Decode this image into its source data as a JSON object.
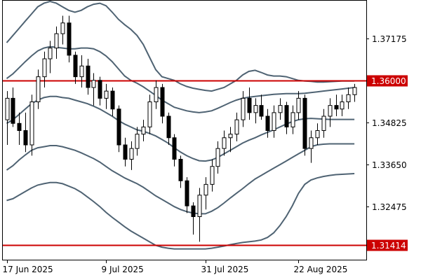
{
  "chart_data": {
    "type": "candlestick",
    "title": "",
    "xlabel": "",
    "ylabel": "",
    "ylim": [
      1.31,
      1.3822
    ],
    "grid": false,
    "colors": {
      "bullish_body": "#ffffff",
      "bearish_body": "#000000",
      "wick": "#000000",
      "bands": "#4f6373",
      "horizontal_line": "#cc0000",
      "badge_bg": "#cc0000",
      "badge_text": "#ffffff",
      "frame": "#000000"
    },
    "y_ticks": [
      "1.37175",
      "1.34825",
      "1.33650",
      "1.32475"
    ],
    "x_ticks": [
      {
        "index": 0,
        "label": "17 Jun 2025"
      },
      {
        "index": 16,
        "label": "9 Jul 2025"
      },
      {
        "index": 32,
        "label": "31 Jul 2025"
      },
      {
        "index": 47,
        "label": "22 Aug 2025"
      }
    ],
    "horizontal_lines": [
      {
        "value": 1.36,
        "label": "1.36000"
      },
      {
        "value": 1.31414,
        "label": "1.31414"
      }
    ],
    "candles": [
      [
        1.349,
        1.357,
        1.342,
        1.355
      ],
      [
        1.355,
        1.358,
        1.347,
        1.348
      ],
      [
        1.348,
        1.351,
        1.342,
        1.346
      ],
      [
        1.346,
        1.351,
        1.34,
        1.342
      ],
      [
        1.342,
        1.356,
        1.339,
        1.354
      ],
      [
        1.354,
        1.363,
        1.352,
        1.361
      ],
      [
        1.361,
        1.368,
        1.358,
        1.366
      ],
      [
        1.366,
        1.371,
        1.362,
        1.369
      ],
      [
        1.369,
        1.375,
        1.366,
        1.373
      ],
      [
        1.373,
        1.378,
        1.37,
        1.376
      ],
      [
        1.376,
        1.378,
        1.365,
        1.367
      ],
      [
        1.367,
        1.368,
        1.359,
        1.361
      ],
      [
        1.361,
        1.367,
        1.358,
        1.364
      ],
      [
        1.364,
        1.366,
        1.356,
        1.358
      ],
      [
        1.358,
        1.362,
        1.353,
        1.36
      ],
      [
        1.36,
        1.361,
        1.353,
        1.355
      ],
      [
        1.355,
        1.359,
        1.352,
        1.357
      ],
      [
        1.357,
        1.358,
        1.35,
        1.352
      ],
      [
        1.352,
        1.353,
        1.34,
        1.342
      ],
      [
        1.342,
        1.344,
        1.336,
        1.338
      ],
      [
        1.338,
        1.343,
        1.335,
        1.341
      ],
      [
        1.341,
        1.347,
        1.339,
        1.345
      ],
      [
        1.345,
        1.349,
        1.343,
        1.347
      ],
      [
        1.347,
        1.356,
        1.345,
        1.354
      ],
      [
        1.354,
        1.36,
        1.352,
        1.358
      ],
      [
        1.358,
        1.359,
        1.348,
        1.35
      ],
      [
        1.35,
        1.351,
        1.342,
        1.344
      ],
      [
        1.344,
        1.345,
        1.336,
        1.338
      ],
      [
        1.338,
        1.339,
        1.33,
        1.332
      ],
      [
        1.332,
        1.333,
        1.323,
        1.325
      ],
      [
        1.325,
        1.326,
        1.317,
        1.322
      ],
      [
        1.322,
        1.33,
        1.315,
        1.328
      ],
      [
        1.328,
        1.333,
        1.324,
        1.331
      ],
      [
        1.331,
        1.338,
        1.329,
        1.336
      ],
      [
        1.336,
        1.343,
        1.334,
        1.341
      ],
      [
        1.341,
        1.346,
        1.339,
        1.344
      ],
      [
        1.344,
        1.347,
        1.34,
        1.345
      ],
      [
        1.345,
        1.351,
        1.343,
        1.349
      ],
      [
        1.349,
        1.357,
        1.347,
        1.355
      ],
      [
        1.355,
        1.358,
        1.349,
        1.351
      ],
      [
        1.351,
        1.355,
        1.348,
        1.353
      ],
      [
        1.353,
        1.356,
        1.349,
        1.35
      ],
      [
        1.35,
        1.352,
        1.344,
        1.346
      ],
      [
        1.346,
        1.353,
        1.344,
        1.351
      ],
      [
        1.351,
        1.355,
        1.349,
        1.353
      ],
      [
        1.353,
        1.354,
        1.345,
        1.347
      ],
      [
        1.347,
        1.353,
        1.345,
        1.351
      ],
      [
        1.351,
        1.357,
        1.349,
        1.355
      ],
      [
        1.355,
        1.356,
        1.339,
        1.341
      ],
      [
        1.341,
        1.346,
        1.337,
        1.344
      ],
      [
        1.344,
        1.348,
        1.342,
        1.346
      ],
      [
        1.346,
        1.352,
        1.344,
        1.35
      ],
      [
        1.35,
        1.355,
        1.347,
        1.353
      ],
      [
        1.353,
        1.356,
        1.35,
        1.352
      ],
      [
        1.352,
        1.356,
        1.35,
        1.354
      ],
      [
        1.354,
        1.358,
        1.352,
        1.356
      ],
      [
        1.356,
        1.359,
        1.354,
        1.358
      ]
    ],
    "series": [
      {
        "values": [
          1.3705,
          1.3725,
          1.3745,
          1.3765,
          1.3785,
          1.3805,
          1.3815,
          1.382,
          1.3815,
          1.3805,
          1.3795,
          1.379,
          1.3795,
          1.3805,
          1.3812,
          1.3815,
          1.3808,
          1.379,
          1.377,
          1.3755,
          1.3742,
          1.3725,
          1.37,
          1.3665,
          1.363,
          1.361,
          1.3605,
          1.36,
          1.359,
          1.3583,
          1.3578,
          1.3575,
          1.3572,
          1.357,
          1.3575,
          1.358,
          1.359,
          1.36,
          1.3615,
          1.3625,
          1.3628,
          1.3622,
          1.3615,
          1.3612,
          1.3612,
          1.361,
          1.3605,
          1.36,
          1.3598,
          1.3597,
          1.3595,
          1.3595,
          1.3596,
          1.3597,
          1.3598,
          1.3598,
          1.3598
        ]
      },
      {
        "values": [
          1.3605,
          1.3618,
          1.3635,
          1.3652,
          1.3668,
          1.3682,
          1.369,
          1.3694,
          1.3692,
          1.369,
          1.3688,
          1.3688,
          1.369,
          1.369,
          1.3688,
          1.368,
          1.3668,
          1.3652,
          1.3632,
          1.3612,
          1.36,
          1.3592,
          1.3582,
          1.357,
          1.3558,
          1.3545,
          1.3535,
          1.3525,
          1.352,
          1.3515,
          1.3512,
          1.351,
          1.3512,
          1.3515,
          1.3522,
          1.353,
          1.3538,
          1.3545,
          1.355,
          1.3553,
          1.3555,
          1.3557,
          1.3559,
          1.3561,
          1.3562,
          1.3563,
          1.3563,
          1.3563,
          1.3564,
          1.3566,
          1.3568,
          1.357,
          1.3572,
          1.3574,
          1.3576,
          1.3578,
          1.358
        ]
      },
      {
        "values": [
          1.348,
          1.349,
          1.3505,
          1.352,
          1.3535,
          1.3545,
          1.3552,
          1.3555,
          1.3555,
          1.3552,
          1.355,
          1.3545,
          1.354,
          1.3535,
          1.3528,
          1.352,
          1.351,
          1.35,
          1.3488,
          1.3478,
          1.347,
          1.3462,
          1.3458,
          1.3452,
          1.3445,
          1.3435,
          1.3425,
          1.3412,
          1.34,
          1.339,
          1.3382,
          1.3376,
          1.3375,
          1.3378,
          1.3385,
          1.3395,
          1.3405,
          1.3415,
          1.3425,
          1.3433,
          1.344,
          1.3448,
          1.3455,
          1.3462,
          1.347,
          1.3478,
          1.3485,
          1.349,
          1.3493,
          1.3494,
          1.3493,
          1.3492,
          1.3491,
          1.3491,
          1.3491,
          1.3491,
          1.3491
        ]
      },
      {
        "values": [
          1.335,
          1.3362,
          1.3378,
          1.3392,
          1.3405,
          1.3412,
          1.3415,
          1.3418,
          1.3418,
          1.3415,
          1.341,
          1.3405,
          1.3398,
          1.339,
          1.3382,
          1.3372,
          1.336,
          1.3348,
          1.3338,
          1.3328,
          1.332,
          1.3312,
          1.3302,
          1.329,
          1.3278,
          1.3268,
          1.3258,
          1.3248,
          1.324,
          1.3234,
          1.323,
          1.3228,
          1.3228,
          1.3235,
          1.3245,
          1.3258,
          1.3272,
          1.3285,
          1.3298,
          1.3312,
          1.3325,
          1.3335,
          1.3345,
          1.3355,
          1.3365,
          1.3375,
          1.3385,
          1.3395,
          1.3405,
          1.3415,
          1.342,
          1.3422,
          1.3423,
          1.3423,
          1.3423,
          1.3423,
          1.3423
        ]
      },
      {
        "values": [
          1.3265,
          1.327,
          1.328,
          1.329,
          1.33,
          1.3308,
          1.3312,
          1.3315,
          1.3315,
          1.3312,
          1.3305,
          1.3298,
          1.3288,
          1.3275,
          1.3262,
          1.3248,
          1.3232,
          1.3218,
          1.3205,
          1.3192,
          1.318,
          1.317,
          1.316,
          1.315,
          1.314,
          1.3135,
          1.3132,
          1.313,
          1.313,
          1.313,
          1.313,
          1.313,
          1.313,
          1.3132,
          1.3135,
          1.3138,
          1.3142,
          1.3145,
          1.3148,
          1.315,
          1.3152,
          1.3155,
          1.3162,
          1.3175,
          1.3195,
          1.322,
          1.325,
          1.3285,
          1.331,
          1.3322,
          1.3328,
          1.3332,
          1.3335,
          1.3337,
          1.3338,
          1.3339,
          1.334
        ]
      }
    ]
  }
}
